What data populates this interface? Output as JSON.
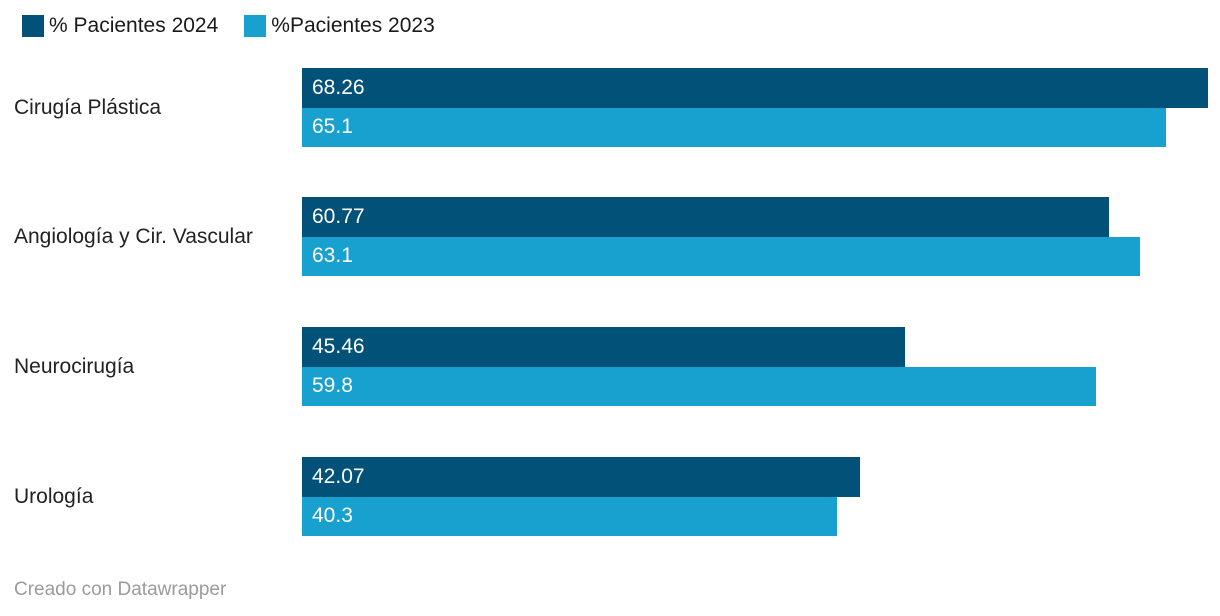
{
  "legend": {
    "items": [
      {
        "label": "% Pacientes 2024",
        "color": "#015179"
      },
      {
        "label": "%Pacientes 2023",
        "color": "#18A1CE"
      }
    ]
  },
  "footer": {
    "text": "Creado con Datawrapper"
  },
  "chart_data": {
    "type": "bar",
    "orientation": "horizontal",
    "title": "",
    "categories": [
      "Cirugía Plástica",
      "Angiología y Cir. Vascular",
      "Neurocirugía",
      "Urología"
    ],
    "series": [
      {
        "name": "% Pacientes 2024",
        "color": "#015179",
        "values": [
          68.26,
          60.77,
          45.46,
          42.07
        ]
      },
      {
        "name": "%Pacientes 2023",
        "color": "#18A1CE",
        "values": [
          65.1,
          63.1,
          59.8,
          40.3
        ]
      }
    ],
    "xlim": [
      0,
      68.26
    ],
    "grid": false,
    "legend_position": "top-left",
    "value_labels": "inside-start",
    "attribution": "Creado con Datawrapper"
  }
}
